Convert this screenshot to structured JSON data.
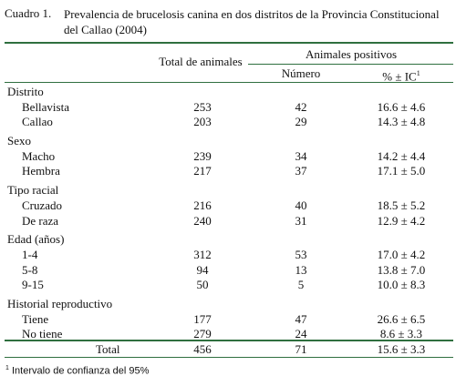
{
  "caption": "Cuadro 1.",
  "title": "Prevalencia de brucelosis canina en dos distritos de la Provincia Constitucional del Callao (2004)",
  "header": {
    "total": "Total de animales",
    "group": "Animales positivos",
    "number": "Número",
    "percent": "% ± IC",
    "percent_note": "1"
  },
  "groups": [
    {
      "name": "Distrito",
      "rows": [
        [
          "Bellavista",
          253,
          42,
          "16.6 ± 4.6"
        ],
        [
          "Callao",
          203,
          29,
          "14.3 ± 4.8"
        ]
      ]
    },
    {
      "name": "Sexo",
      "rows": [
        [
          "Macho",
          239,
          34,
          "14.2 ± 4.4"
        ],
        [
          "Hembra",
          217,
          37,
          "17.1 ± 5.0"
        ]
      ]
    },
    {
      "name": "Tipo racial",
      "rows": [
        [
          "Cruzado",
          216,
          40,
          "18.5 ± 5.2"
        ],
        [
          "De raza",
          240,
          31,
          "12.9 ± 4.2"
        ]
      ]
    },
    {
      "name": "Edad (años)",
      "rows": [
        [
          "1-4",
          312,
          53,
          "17.0 ± 4.2"
        ],
        [
          "5-8",
          94,
          13,
          "13.8 ± 7.0"
        ],
        [
          "9-15",
          50,
          5,
          "10.0 ± 8.3"
        ]
      ]
    },
    {
      "name": "Historial reproductivo",
      "rows": [
        [
          "Tiene",
          177,
          47,
          "26.6 ± 6.5"
        ],
        [
          "No tiene",
          279,
          24,
          "8.6 ± 3.3"
        ]
      ]
    }
  ],
  "total_row": [
    "Total",
    456,
    71,
    "15.6 ± 3.3"
  ],
  "footnote": {
    "marker": "1",
    "text": "Intervalo de confianza del 95%"
  }
}
